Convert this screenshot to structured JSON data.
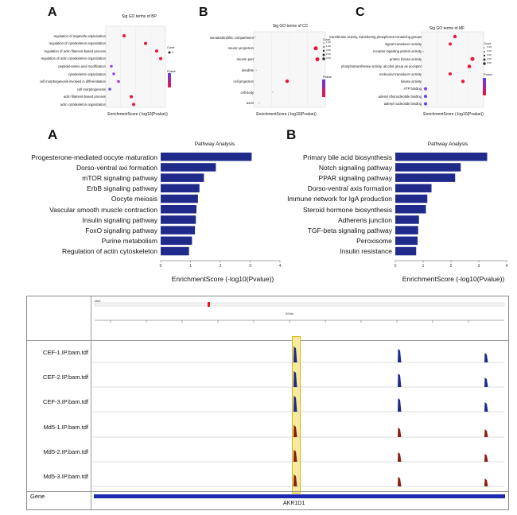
{
  "top_panels": [
    {
      "letter": "A",
      "title": "Sig GO terms of BP",
      "xlabel": "EnrichmentScore (-log10(Pvalue))",
      "legend_count_title": "Count",
      "legend_count_values": [
        "4"
      ],
      "legend_pvalue_title": "Pvalue",
      "terms": [
        "regulation of organelle organization",
        "regulation of cytoskeleton organization",
        "regulation of actin filament-based process",
        "regulation of actin cytoskeleton organization",
        "peptidyl-amino acid modification",
        "cytoskeleton organization",
        "cell morphogenesis involved in differentiation",
        "cell morphogenesis",
        "actin filament-based process",
        "actin cytoskeleton organization"
      ]
    },
    {
      "letter": "B",
      "title": "Sig GO terms of CC",
      "xlabel": "EnrichmentScore (-log10(Pvalue))",
      "legend_count_title": "Count",
      "legend_count_values": [
        "1.00",
        "1.50",
        "2.00",
        "2.50",
        "3.00"
      ],
      "legend_pvalue_title": "Pvalue",
      "terms": [
        "somatodendritic compartment",
        "neuron projection",
        "neuron part",
        "dendrite",
        "cell projection",
        "cell body",
        "axon"
      ]
    },
    {
      "letter": "C",
      "title": "Sig GO terms of MF",
      "xlabel": "EnrichmentScore (-log10(Pvalue))",
      "legend_count_title": "Count",
      "legend_count_values": [
        "1.00",
        "2.00",
        "3.00",
        "4.00",
        "5.00"
      ],
      "legend_pvalue_title": "Pvalue",
      "terms": [
        "transferase activity, transferring phosphorus-containing groups",
        "signal transducer activity",
        "receptor signaling protein activity",
        "protein kinase activity",
        "phosphotransferase activity, alcohol group as acceptor",
        "molecular transducer activity",
        "kinase activity",
        "ATP binding",
        "adenyl ribonucleotide binding",
        "adenyl nucleotide binding"
      ]
    }
  ],
  "chart_data": [
    {
      "type": "bar",
      "letter": "A",
      "title": "Pathway Analysis",
      "xlabel": "EnrichmentScore (-log10(Pvalue))",
      "categories": [
        "Progesterone-mediated oocyte maturation",
        "Dorso-ventral axi formation",
        "mTOR signaling pathway",
        "ErbB signaling pathway",
        "Oocyte meiosis",
        "Vascular smooth muscle contraction",
        "Insulin signaling pathway",
        "FoxO signaling pathway",
        "Purine metabolism",
        "Regulation of actin cytoskeleton"
      ],
      "values": [
        3.05,
        1.85,
        1.45,
        1.3,
        1.25,
        1.2,
        1.18,
        1.15,
        1.05,
        0.95
      ],
      "xticks": [
        "0",
        "1",
        "2",
        "3",
        "4"
      ],
      "xlim": [
        0,
        4
      ],
      "color": "#1f2a8a"
    },
    {
      "type": "bar",
      "letter": "B",
      "title": "Pathway Analysis",
      "xlabel": "EnrichmentScore (-log10(Pvalue))",
      "categories": [
        "Primary bile acid biosynthesis",
        "Notch signaling pathway",
        "PPAR signaling pathway",
        "Dorso-ventral axis formation",
        "Immune network for IgA production",
        "Steroid hormone biosynthesis",
        "Adherens junction",
        "TGF-beta signaling pathway",
        "Peroxisome",
        "Insulin resistance"
      ],
      "values": [
        3.3,
        2.35,
        2.15,
        1.3,
        1.15,
        1.1,
        0.85,
        0.82,
        0.8,
        0.75
      ],
      "xticks": [
        "0",
        "1",
        "2",
        "3",
        "4"
      ],
      "xlim": [
        0,
        4
      ],
      "color": "#1f2a8a"
    }
  ],
  "genome_browser": {
    "tracks": [
      "CEF-1.IP.bam.tdf",
      "CEF-2.IP.bam.tdf",
      "CEF-3.IP.bam.tdf",
      "Md5-1.IP.bam.tdf",
      "Md5-2.IP.bam.tdf",
      "Md5-3.IP.bam.tdf"
    ],
    "gene_label": "Gene",
    "gene_name": "AKR1D1",
    "chrom": "chr1",
    "scale_label": "29 kb",
    "cef_color": "#1f2a8a",
    "md5_color": "#8a1e10",
    "highlight_color": "#f6e9a0"
  }
}
